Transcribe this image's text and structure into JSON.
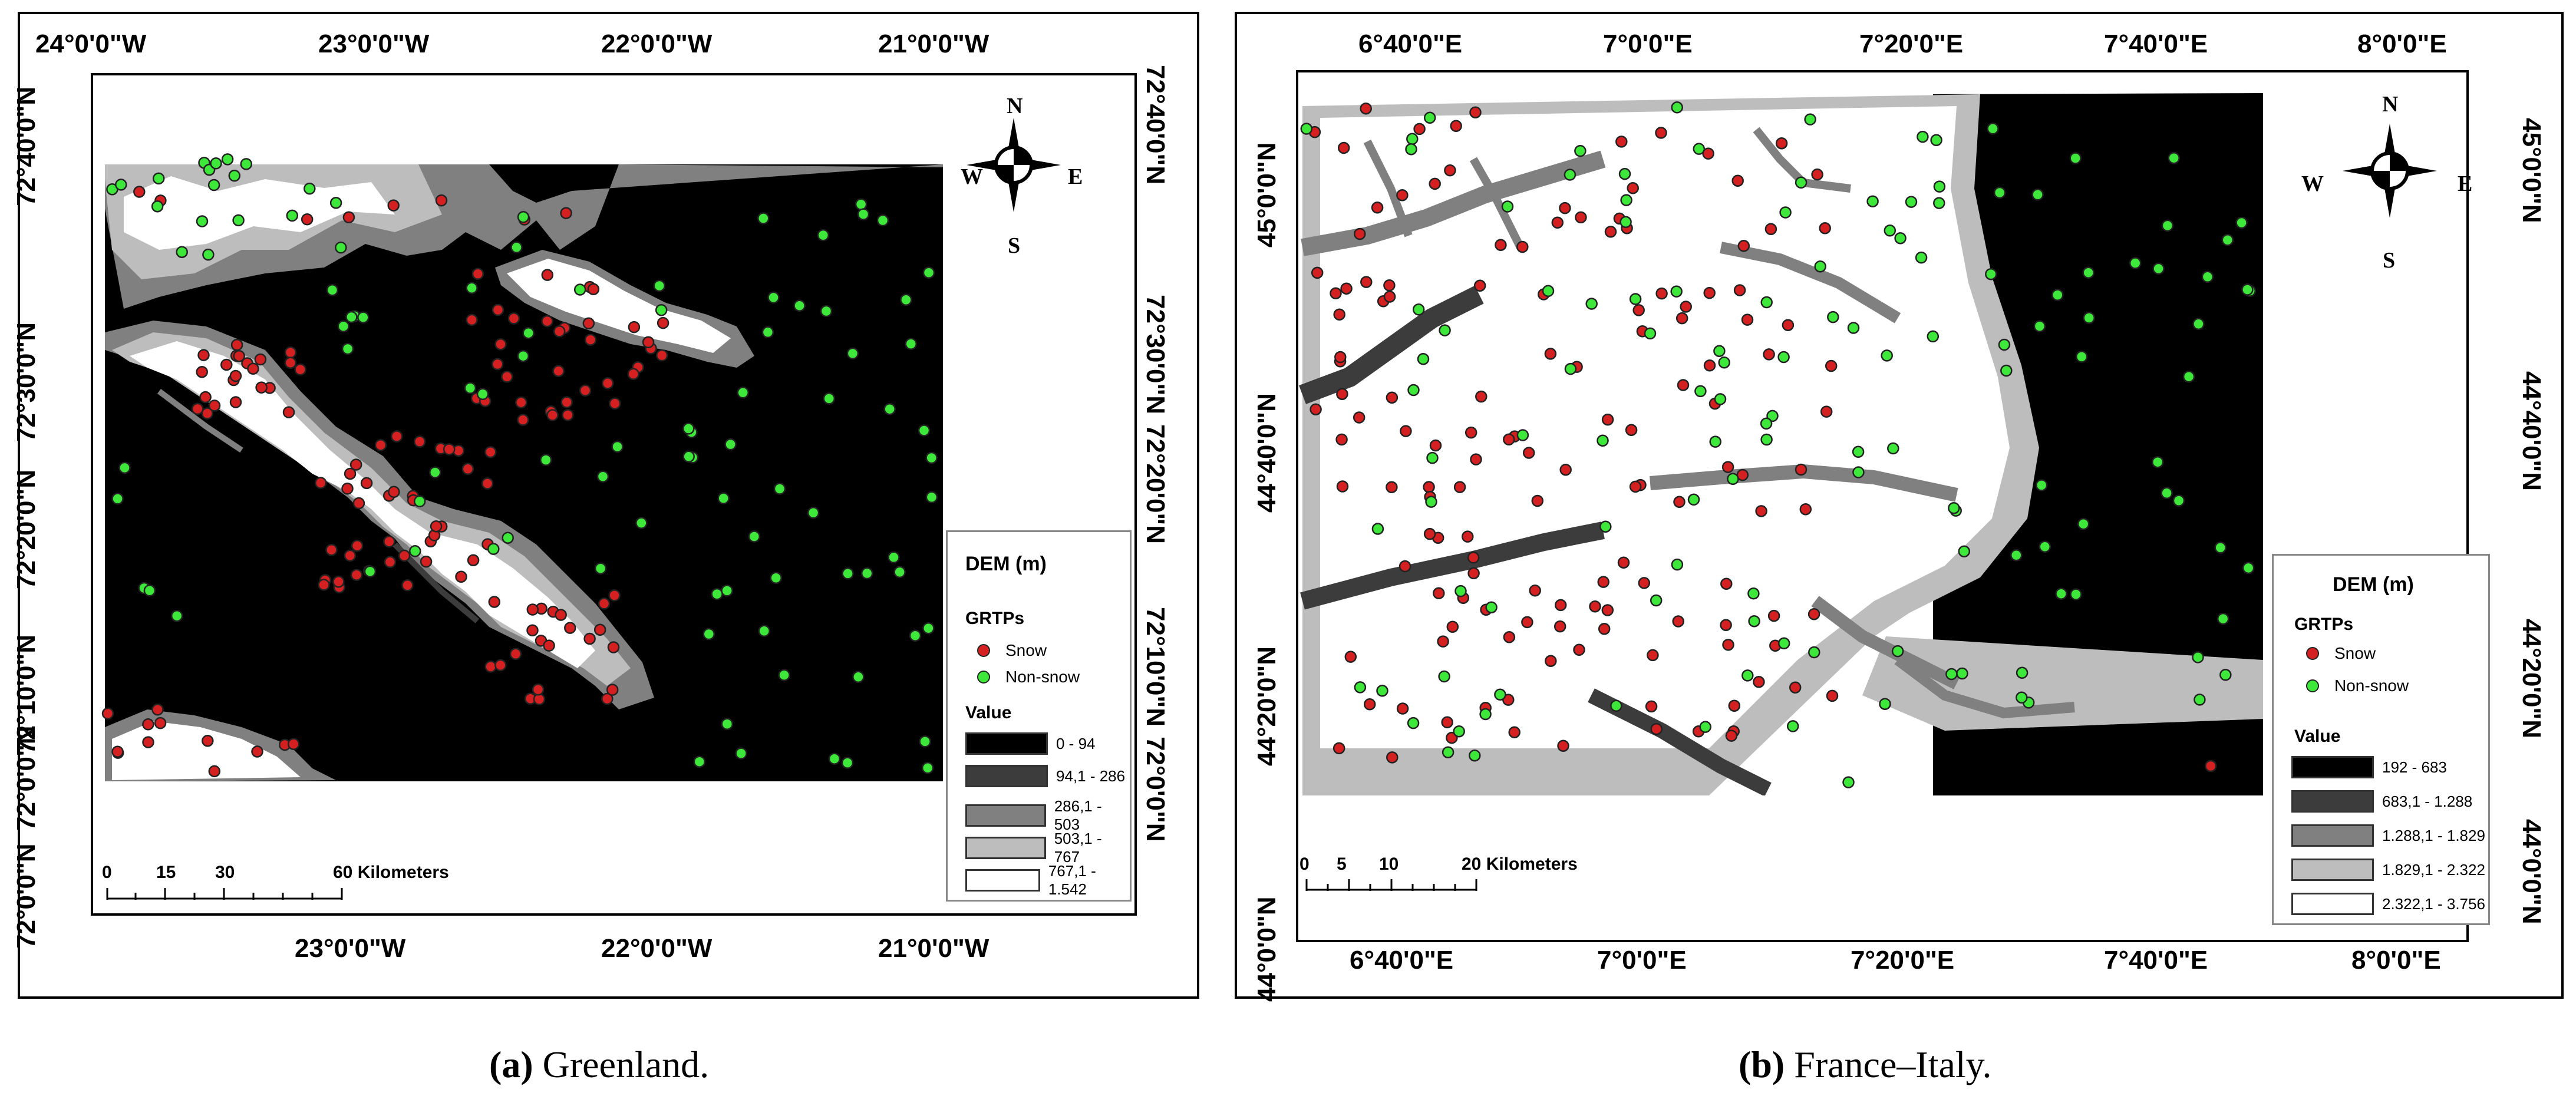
{
  "panel_a": {
    "caption_letter": "(a)",
    "caption_text": " Greenland.",
    "top_ticks": [
      "24°0'0\"W",
      "23°0'0\"W",
      "22°0'0\"W",
      "21°0'0\"W"
    ],
    "bottom_ticks": [
      "23°0'0\"W",
      "22°0'0\"W",
      "21°0'0\"W"
    ],
    "left_ticks": [
      "72°40'0\"N",
      "72°30'0\"N",
      "72°20'0\"N",
      "72°10'0\"N",
      "72°0'0\"N",
      "72°0'0\"N"
    ],
    "right_ticks": [
      "72°40'0\"N",
      "72°30'0\"N",
      "72°20'0\"N",
      "72°10'0\"N",
      "72°0'0\"N"
    ],
    "compass": {
      "n": "N",
      "s": "S",
      "e": "E",
      "w": "W"
    },
    "legend": {
      "title": "DEM (m)",
      "grtps": "GRTPs",
      "snow": "Snow",
      "non_snow": "Non-snow",
      "value": "Value",
      "classes": [
        "0 - 94",
        "94,1 - 286",
        "286,1 - 503",
        "503,1 - 767",
        "767,1 - 1.542"
      ]
    },
    "scale": {
      "labels": [
        "0",
        "15",
        "30",
        "60 Kilometers"
      ]
    }
  },
  "panel_b": {
    "caption_letter": "(b)",
    "caption_text": " France–Italy.",
    "top_ticks": [
      "6°40'0\"E",
      "7°0'0\"E",
      "7°20'0\"E",
      "7°40'0\"E",
      "8°0'0\"E"
    ],
    "bottom_ticks": [
      "6°40'0\"E",
      "7°0'0\"E",
      "7°20'0\"E",
      "7°40'0\"E",
      "8°0'0\"E"
    ],
    "left_ticks": [
      "45°0'0\"N",
      "44°40'0\"N",
      "44°20'0\"N",
      "44°0'0\"N"
    ],
    "right_ticks": [
      "45°0'0\"N",
      "44°40'0\"N",
      "44°20'0\"N",
      "44°0'0\"N"
    ],
    "compass": {
      "n": "N",
      "s": "S",
      "e": "E",
      "w": "W"
    },
    "legend": {
      "title": "DEM (m)",
      "grtps": "GRTPs",
      "snow": "Snow",
      "non_snow": "Non-snow",
      "value": "Value",
      "classes": [
        "192 - 683",
        "683,1 - 1.288",
        "1.288,1 - 1.829",
        "1.829,1 - 2.322",
        "2.322,1 - 3.756"
      ]
    },
    "scale": {
      "labels": [
        "0",
        "5",
        "10",
        "20 Kilometers"
      ]
    }
  },
  "colors": {
    "snow": "#d42020",
    "non_snow": "#3ee83a",
    "dem_classes": [
      "#000000",
      "#3c3c3c",
      "#808080",
      "#bdbdbd",
      "#ffffff"
    ]
  }
}
